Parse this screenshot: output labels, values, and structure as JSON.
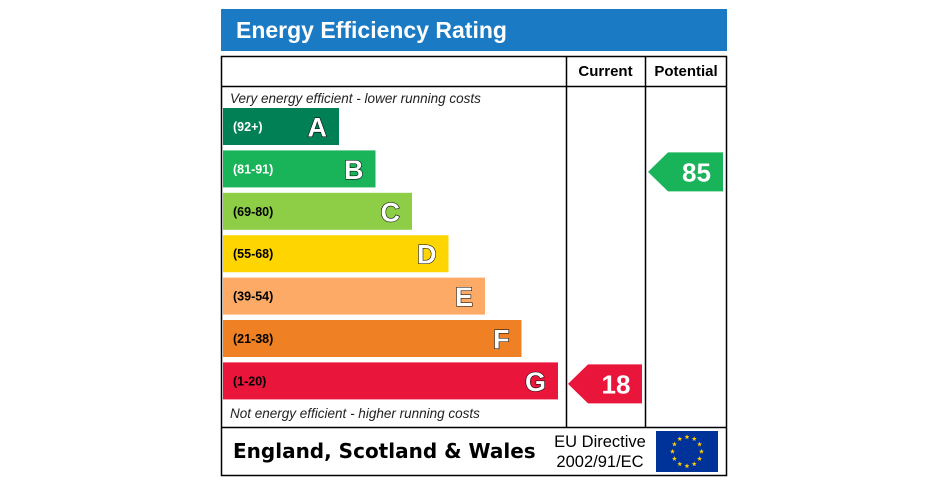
{
  "title": "Energy Efficiency Rating",
  "columns": {
    "current": "Current",
    "potential": "Potential"
  },
  "notes": {
    "top": "Very energy efficient - lower running costs",
    "bottom": "Not energy efficient - higher running costs"
  },
  "chart_data": {
    "type": "bar",
    "title": "Energy Efficiency Rating",
    "categories": [
      "A",
      "B",
      "C",
      "D",
      "E",
      "F",
      "G"
    ],
    "bands": [
      {
        "letter": "A",
        "range": "(92+)",
        "min": 92,
        "max": 100,
        "color": "#008054",
        "range_text_color": "#ffffff"
      },
      {
        "letter": "B",
        "range": "(81-91)",
        "min": 81,
        "max": 91,
        "color": "#19b459",
        "range_text_color": "#ffffff"
      },
      {
        "letter": "C",
        "range": "(69-80)",
        "min": 69,
        "max": 80,
        "color": "#8dce46",
        "range_text_color": "#000000"
      },
      {
        "letter": "D",
        "range": "(55-68)",
        "min": 55,
        "max": 68,
        "color": "#ffd500",
        "range_text_color": "#000000"
      },
      {
        "letter": "E",
        "range": "(39-54)",
        "min": 39,
        "max": 54,
        "color": "#fcaa65",
        "range_text_color": "#000000"
      },
      {
        "letter": "F",
        "range": "(21-38)",
        "min": 21,
        "max": 38,
        "color": "#ef8023",
        "range_text_color": "#000000"
      },
      {
        "letter": "G",
        "range": "(1-20)",
        "min": 1,
        "max": 20,
        "color": "#e9153b",
        "range_text_color": "#000000"
      }
    ],
    "current": {
      "value": 18,
      "band": "G",
      "color": "#e9153b"
    },
    "potential": {
      "value": 85,
      "band": "B",
      "color": "#19b459"
    }
  },
  "footer": {
    "region": "England, Scotland & Wales",
    "directive_line1": "EU Directive",
    "directive_line2": "2002/91/EC"
  },
  "colors": {
    "title_bar": "#1a7ac4",
    "eu_flag": "#003399",
    "eu_stars": "#ffcc00"
  }
}
